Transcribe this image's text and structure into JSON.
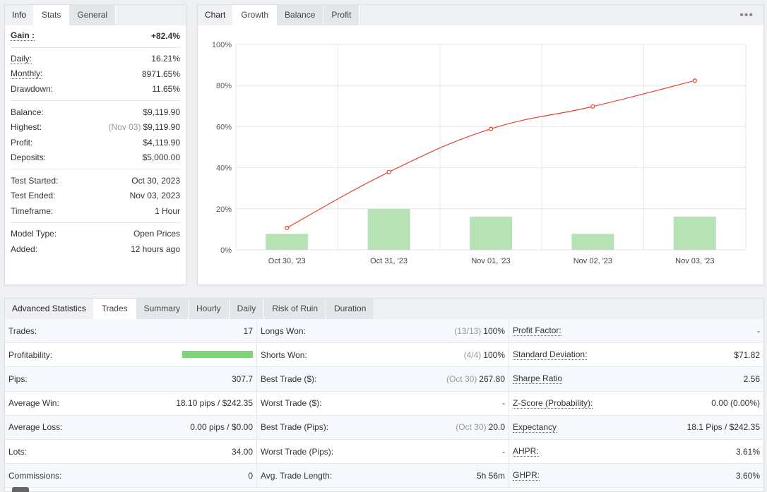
{
  "info_tabs": [
    "Info",
    "Stats",
    "General"
  ],
  "info": {
    "gain_label": "Gain :",
    "gain_value": "+82.4%",
    "daily_label": "Daily:",
    "daily_value": "16.21%",
    "monthly_label": "Monthly:",
    "monthly_value": "8971.65%",
    "drawdown_label": "Drawdown:",
    "drawdown_value": "11.65%",
    "balance_label": "Balance:",
    "balance_value": "$9,119.90",
    "highest_label": "Highest:",
    "highest_note": "(Nov 03)",
    "highest_value": "$9,119.90",
    "profit_label": "Profit:",
    "profit_value": "$4,119.90",
    "deposits_label": "Deposits:",
    "deposits_value": "$5,000.00",
    "test_started_label": "Test Started:",
    "test_started_value": "Oct 30, 2023",
    "test_ended_label": "Test Ended:",
    "test_ended_value": "Nov 03, 2023",
    "timeframe_label": "Timeframe:",
    "timeframe_value": "1 Hour",
    "model_type_label": "Model Type:",
    "model_type_value": "Open Prices",
    "added_label": "Added:",
    "added_value": "12 hours ago"
  },
  "chart_tabs": [
    "Chart",
    "Growth",
    "Balance",
    "Profit"
  ],
  "colors": {
    "line": "#e8412f",
    "bar": "#b6e2b6",
    "green_text": "#21a94a",
    "progress": "#7fd67a"
  },
  "chart_data": {
    "type": "line",
    "categories": [
      "Oct 30, '23",
      "Oct 31, '23",
      "Nov 01, '23",
      "Nov 02, '23",
      "Nov 03, '23"
    ],
    "y_ticks": [
      "0%",
      "20%",
      "40%",
      "60%",
      "80%",
      "100%"
    ],
    "ylim": [
      0,
      100
    ],
    "series": [
      {
        "type": "line",
        "values": [
          10.7,
          37.9,
          58.9,
          69.8,
          82.4
        ]
      },
      {
        "type": "bar",
        "values": [
          7.8,
          19.9,
          16.2,
          7.8,
          16.2
        ]
      }
    ],
    "grid": true
  },
  "adv_tabs": [
    "Advanced Statistics",
    "Trades",
    "Summary",
    "Hourly",
    "Daily",
    "Risk of Ruin",
    "Duration"
  ],
  "adv": {
    "col1": [
      {
        "label": "Trades:",
        "value": "17"
      },
      {
        "label": "Profitability:",
        "progress": 1.0
      },
      {
        "label": "Pips:",
        "value": "307.7"
      },
      {
        "label": "Average Win:",
        "value": "18.10 pips / $242.35"
      },
      {
        "label": "Average Loss:",
        "value": "0.00 pips / $0.00"
      },
      {
        "label": "Lots:",
        "value": "34.00"
      },
      {
        "label": "Commissions:",
        "value": "0"
      }
    ],
    "col2": [
      {
        "label": "Longs Won:",
        "note": "(13/13)",
        "value": "100%"
      },
      {
        "label": "Shorts Won:",
        "note": "(4/4)",
        "value": "100%"
      },
      {
        "label": "Best Trade ($):",
        "note": "(Oct 30)",
        "value": "267.80"
      },
      {
        "label": "Worst Trade ($):",
        "value": "-"
      },
      {
        "label": "Best Trade (Pips):",
        "note": "(Oct 30)",
        "value": "20.0"
      },
      {
        "label": "Worst Trade (Pips):",
        "value": "-"
      },
      {
        "label": "Avg. Trade Length:",
        "value": "5h 56m"
      }
    ],
    "col3": [
      {
        "label": "Profit Factor:",
        "value": "-"
      },
      {
        "label": "Standard Deviation:",
        "value": "$71.82"
      },
      {
        "label": "Sharpe Ratio",
        "value": "2.56"
      },
      {
        "label": "Z-Score (Probability):",
        "value": "0.00 (0.00%)"
      },
      {
        "label": "Expectancy",
        "value": "18.1 Pips / $242.35"
      },
      {
        "label": "AHPR:",
        "value": "3.61%"
      },
      {
        "label": "GHPR:",
        "value": "3.60%"
      }
    ]
  }
}
